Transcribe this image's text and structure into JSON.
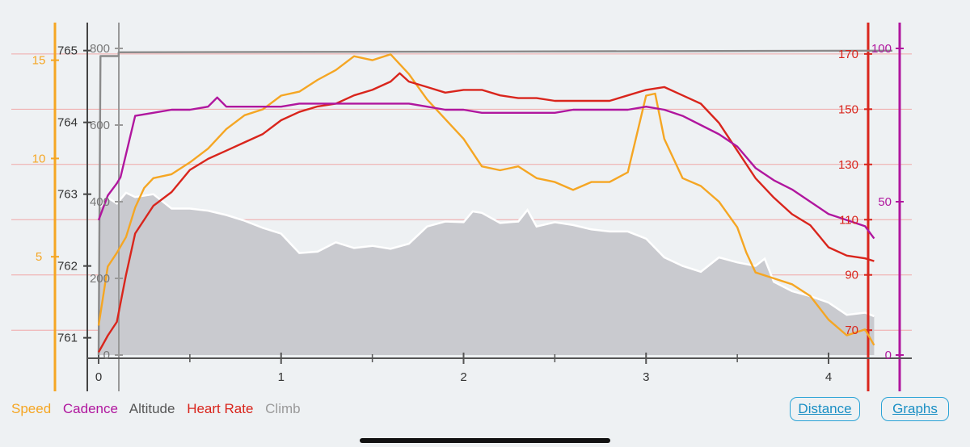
{
  "legend": {
    "speed": "Speed",
    "cadence": "Cadence",
    "altitude": "Altitude",
    "heart_rate": "Heart Rate",
    "climb": "Climb"
  },
  "buttons": {
    "distance": "Distance",
    "graphs": "Graphs"
  },
  "colors": {
    "speed": "#f5a623",
    "cadence": "#b0169e",
    "altitude": "#555555",
    "heart_rate": "#d9251c",
    "climb": "#9a9a9a",
    "grid": "#f0a8a8",
    "button": "#2aa3d6"
  },
  "chart_data": {
    "type": "line",
    "x_ticks": [
      "0",
      "1",
      "2",
      "3",
      "4"
    ],
    "xlim": [
      0,
      4.35
    ],
    "axes": {
      "speed": {
        "ticks": [
          "5",
          "10",
          "15"
        ],
        "range": [
          0,
          15.6
        ]
      },
      "altitude": {
        "ticks": [
          "761",
          "762",
          "763",
          "764",
          "765"
        ],
        "range": [
          760.76,
          765.03
        ]
      },
      "climb": {
        "ticks": [
          "0",
          "200",
          "400",
          "600",
          "800"
        ],
        "range": [
          0,
          800
        ]
      },
      "heart_rate": {
        "ticks": [
          "70",
          "90",
          "110",
          "130",
          "150",
          "170"
        ],
        "range": [
          61,
          172
        ]
      },
      "cadence": {
        "ticks": [
          "0",
          "50",
          "100"
        ],
        "range": [
          0,
          100
        ]
      }
    },
    "series": [
      {
        "name": "Climb",
        "axis": "climb",
        "type": "line",
        "x": [
          0,
          0.01,
          0.11,
          0.11,
          4.35
        ],
        "values": [
          0,
          780,
          780,
          790,
          794
        ]
      },
      {
        "name": "Altitude",
        "axis": "altitude",
        "type": "area",
        "x": [
          0,
          0.05,
          0.1,
          0.15,
          0.2,
          0.3,
          0.4,
          0.5,
          0.6,
          0.7,
          0.8,
          0.9,
          1.0,
          1.1,
          1.2,
          1.3,
          1.4,
          1.5,
          1.6,
          1.7,
          1.8,
          1.9,
          2.0,
          2.05,
          2.1,
          2.2,
          2.3,
          2.35,
          2.4,
          2.5,
          2.6,
          2.7,
          2.8,
          2.9,
          3.0,
          3.1,
          3.2,
          3.3,
          3.4,
          3.5,
          3.6,
          3.65,
          3.7,
          3.8,
          3.9,
          4.0,
          4.1,
          4.2,
          4.25
        ],
        "values": [
          762.8,
          762.95,
          762.87,
          763.02,
          762.96,
          763.0,
          762.8,
          762.8,
          762.77,
          762.71,
          762.63,
          762.53,
          762.45,
          762.18,
          762.2,
          762.33,
          762.25,
          762.28,
          762.24,
          762.31,
          762.55,
          762.62,
          762.61,
          762.76,
          762.74,
          762.6,
          762.62,
          762.78,
          762.55,
          762.61,
          762.57,
          762.51,
          762.48,
          762.48,
          762.38,
          762.12,
          762.0,
          761.92,
          762.12,
          762.05,
          762.0,
          762.1,
          761.78,
          761.65,
          761.58,
          761.49,
          761.32,
          761.35,
          761.3
        ]
      },
      {
        "name": "Speed",
        "axis": "speed",
        "type": "line",
        "x": [
          0,
          0.05,
          0.1,
          0.15,
          0.2,
          0.25,
          0.3,
          0.4,
          0.5,
          0.6,
          0.7,
          0.8,
          0.9,
          1.0,
          1.1,
          1.2,
          1.3,
          1.4,
          1.5,
          1.6,
          1.7,
          1.8,
          1.9,
          2.0,
          2.1,
          2.2,
          2.3,
          2.4,
          2.5,
          2.6,
          2.7,
          2.8,
          2.9,
          3.0,
          3.05,
          3.1,
          3.2,
          3.3,
          3.4,
          3.5,
          3.55,
          3.6,
          3.7,
          3.8,
          3.9,
          4.0,
          4.1,
          4.2,
          4.25
        ],
        "values": [
          1.5,
          4.5,
          5.2,
          6.0,
          7.5,
          8.5,
          9.0,
          9.2,
          9.8,
          10.5,
          11.5,
          12.2,
          12.5,
          13.2,
          13.4,
          14.0,
          14.5,
          15.2,
          15.0,
          15.3,
          14.3,
          13.0,
          12.0,
          11.0,
          9.6,
          9.4,
          9.6,
          9.0,
          8.8,
          8.4,
          8.8,
          8.8,
          9.3,
          13.2,
          13.3,
          11.0,
          9.0,
          8.6,
          7.8,
          6.5,
          5.2,
          4.2,
          3.9,
          3.6,
          3.0,
          1.8,
          1.0,
          1.3,
          0.5
        ]
      },
      {
        "name": "Heart Rate",
        "axis": "heart_rate",
        "type": "line",
        "x": [
          0,
          0.05,
          0.1,
          0.15,
          0.2,
          0.3,
          0.4,
          0.5,
          0.6,
          0.7,
          0.8,
          0.9,
          1.0,
          1.1,
          1.2,
          1.3,
          1.4,
          1.5,
          1.6,
          1.65,
          1.7,
          1.8,
          1.9,
          2.0,
          2.1,
          2.2,
          2.3,
          2.4,
          2.5,
          2.6,
          2.7,
          2.8,
          2.9,
          3.0,
          3.1,
          3.2,
          3.3,
          3.4,
          3.5,
          3.6,
          3.7,
          3.8,
          3.9,
          4.0,
          4.1,
          4.2,
          4.25
        ],
        "values": [
          62,
          68,
          73,
          90,
          105,
          115,
          120,
          128,
          132,
          135,
          138,
          141,
          146,
          149,
          151,
          152,
          155,
          157,
          160,
          163,
          160,
          158,
          156,
          157,
          157,
          155,
          154,
          154,
          153,
          153,
          153,
          153,
          155,
          157,
          158,
          155,
          152,
          145,
          135,
          125,
          118,
          112,
          108,
          100,
          97,
          96,
          95
        ]
      },
      {
        "name": "Cadence",
        "axis": "cadence",
        "type": "line",
        "x": [
          0,
          0.05,
          0.1,
          0.12,
          0.2,
          0.3,
          0.4,
          0.5,
          0.6,
          0.65,
          0.7,
          0.8,
          0.9,
          1.0,
          1.1,
          1.2,
          1.3,
          1.4,
          1.5,
          1.6,
          1.7,
          1.8,
          1.9,
          2.0,
          2.1,
          2.2,
          2.3,
          2.4,
          2.5,
          2.6,
          2.7,
          2.8,
          2.9,
          3.0,
          3.1,
          3.2,
          3.3,
          3.4,
          3.5,
          3.6,
          3.7,
          3.8,
          3.9,
          4.0,
          4.1,
          4.2,
          4.25
        ],
        "values": [
          44,
          52,
          56,
          58,
          78,
          79,
          80,
          80,
          81,
          84,
          81,
          81,
          81,
          81,
          82,
          82,
          82,
          82,
          82,
          82,
          82,
          81,
          80,
          80,
          79,
          79,
          79,
          79,
          79,
          80,
          80,
          80,
          80,
          81,
          80,
          78,
          75,
          72,
          68,
          61,
          57,
          54,
          50,
          46,
          44,
          42,
          38
        ]
      }
    ]
  }
}
